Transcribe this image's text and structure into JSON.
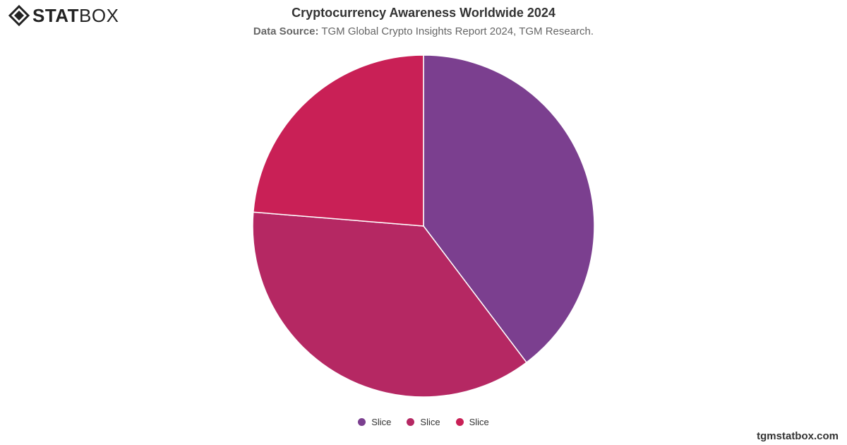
{
  "brand": {
    "logo_strong": "STAT",
    "logo_light": "BOX",
    "website": "tgmstatbox.com"
  },
  "header": {
    "title": "Cryptocurrency Awareness Worldwide 2024",
    "source_label": "Data Source:",
    "source_text": " TGM Global Crypto Insights Report 2024, TGM Research."
  },
  "chart_data": {
    "type": "pie",
    "title": "Cryptocurrency Awareness Worldwide 2024",
    "legend_position": "bottom",
    "slices": [
      {
        "name": "Slice",
        "value": 39.7,
        "color": "#7b3f8f"
      },
      {
        "name": "Slice",
        "value": 36.6,
        "color": "#b52863"
      },
      {
        "name": "Slice",
        "value": 23.7,
        "color": "#c92056"
      }
    ]
  }
}
